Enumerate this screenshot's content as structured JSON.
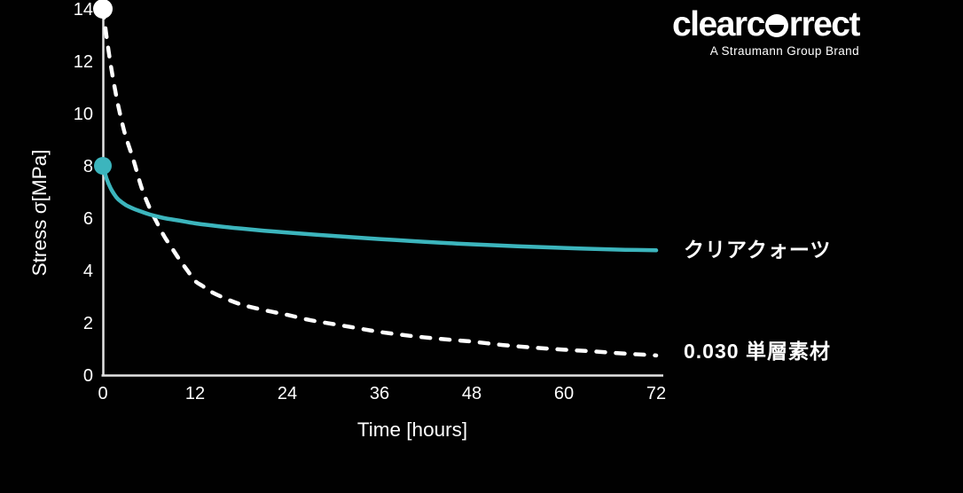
{
  "brand": {
    "logo_pre": "clearc",
    "logo_post": "rrect",
    "tagline": "A Straumann Group Brand"
  },
  "chart_data": {
    "type": "line",
    "title": "",
    "xlabel": "Time [hours]",
    "ylabel": "Stress σ[MPa]",
    "xlim": [
      0,
      72
    ],
    "ylim": [
      0,
      14
    ],
    "x_ticks": [
      "0",
      "12",
      "24",
      "36",
      "48",
      "60",
      "72"
    ],
    "x_tick_values": [
      0,
      12,
      24,
      36,
      48,
      60,
      72
    ],
    "y_ticks": [
      "0",
      "2",
      "4",
      "6",
      "8",
      "10",
      "12",
      "14"
    ],
    "y_tick_values": [
      0,
      2,
      4,
      6,
      8,
      10,
      12,
      14
    ],
    "grid": false,
    "background_color": "#010101",
    "axis_color": "#e4e4e4",
    "tick_color": "#ffffff",
    "legend_position": "right of curve ends",
    "series": [
      {
        "name": "0.030 単層素材",
        "color": "#ffffff",
        "line_style": "dashed",
        "start_marker": [
          0,
          14
        ],
        "points": [
          [
            0,
            14
          ],
          [
            0.5,
            12.9
          ],
          [
            1,
            11.9
          ],
          [
            1.5,
            11.05
          ],
          [
            2,
            10.3
          ],
          [
            2.5,
            9.65
          ],
          [
            3,
            9.1
          ],
          [
            4,
            8.2
          ],
          [
            5,
            7.2
          ],
          [
            6,
            6.45
          ],
          [
            7,
            5.85
          ],
          [
            8,
            5.3
          ],
          [
            9,
            4.85
          ],
          [
            10,
            4.4
          ],
          [
            11,
            4.0
          ],
          [
            12,
            3.6
          ],
          [
            13,
            3.4
          ],
          [
            14,
            3.2
          ],
          [
            16,
            2.92
          ],
          [
            18,
            2.7
          ],
          [
            20,
            2.55
          ],
          [
            22,
            2.42
          ],
          [
            24,
            2.3
          ],
          [
            27,
            2.1
          ],
          [
            30,
            1.95
          ],
          [
            33,
            1.8
          ],
          [
            36,
            1.65
          ],
          [
            40,
            1.5
          ],
          [
            44,
            1.38
          ],
          [
            48,
            1.28
          ],
          [
            52,
            1.15
          ],
          [
            56,
            1.05
          ],
          [
            60,
            0.97
          ],
          [
            64,
            0.9
          ],
          [
            68,
            0.82
          ],
          [
            72,
            0.75
          ]
        ]
      },
      {
        "name": "クリアクォーツ",
        "color": "#3cb5bd",
        "line_style": "solid",
        "start_marker": [
          0,
          8
        ],
        "points": [
          [
            0,
            8
          ],
          [
            0.5,
            7.5
          ],
          [
            1,
            7.15
          ],
          [
            1.5,
            6.9
          ],
          [
            2,
            6.72
          ],
          [
            3,
            6.5
          ],
          [
            4,
            6.36
          ],
          [
            5,
            6.25
          ],
          [
            6,
            6.15
          ],
          [
            7,
            6.07
          ],
          [
            8,
            6.0
          ],
          [
            10,
            5.9
          ],
          [
            12,
            5.8
          ],
          [
            15,
            5.69
          ],
          [
            18,
            5.6
          ],
          [
            21,
            5.52
          ],
          [
            24,
            5.45
          ],
          [
            28,
            5.36
          ],
          [
            32,
            5.28
          ],
          [
            36,
            5.2
          ],
          [
            40,
            5.13
          ],
          [
            44,
            5.06
          ],
          [
            48,
            5.0
          ],
          [
            52,
            4.95
          ],
          [
            56,
            4.9
          ],
          [
            60,
            4.86
          ],
          [
            64,
            4.82
          ],
          [
            68,
            4.79
          ],
          [
            72,
            4.77
          ]
        ]
      }
    ]
  }
}
